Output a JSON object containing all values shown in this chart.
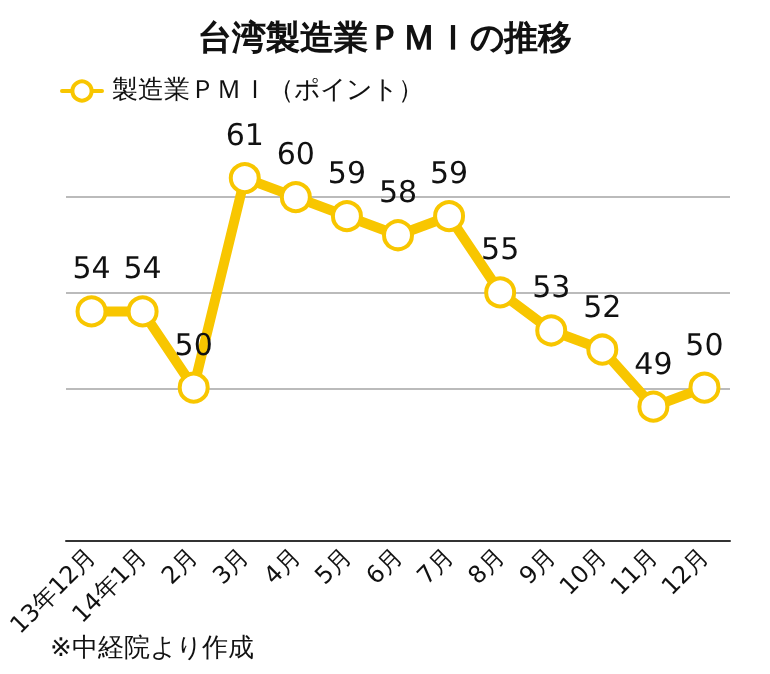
{
  "chart_data": {
    "type": "line",
    "title": "台湾製造業ＰＭＩの推移",
    "categories": [
      "13年12月",
      "14年1月",
      "2月",
      "3月",
      "4月",
      "5月",
      "6月",
      "7月",
      "8月",
      "9月",
      "10月",
      "11月",
      "12月"
    ],
    "series": [
      {
        "name": "製造業ＰＭＩ（ポイント）",
        "color": "#f8c600",
        "values": [
          54,
          54,
          50,
          61,
          60,
          59,
          58,
          59,
          55,
          53,
          52,
          49,
          50
        ]
      }
    ],
    "yticks": [
      {
        "value": 50,
        "label": null
      },
      {
        "value": 55,
        "label": null
      },
      {
        "value": 60,
        "label": null
      }
    ],
    "grid": "y",
    "tick_labels": "x",
    "legend": "top left",
    "marker": "circle",
    "line_style": "solid",
    "data_labels": true,
    "annotations": [
      "※中経院より作成"
    ]
  }
}
